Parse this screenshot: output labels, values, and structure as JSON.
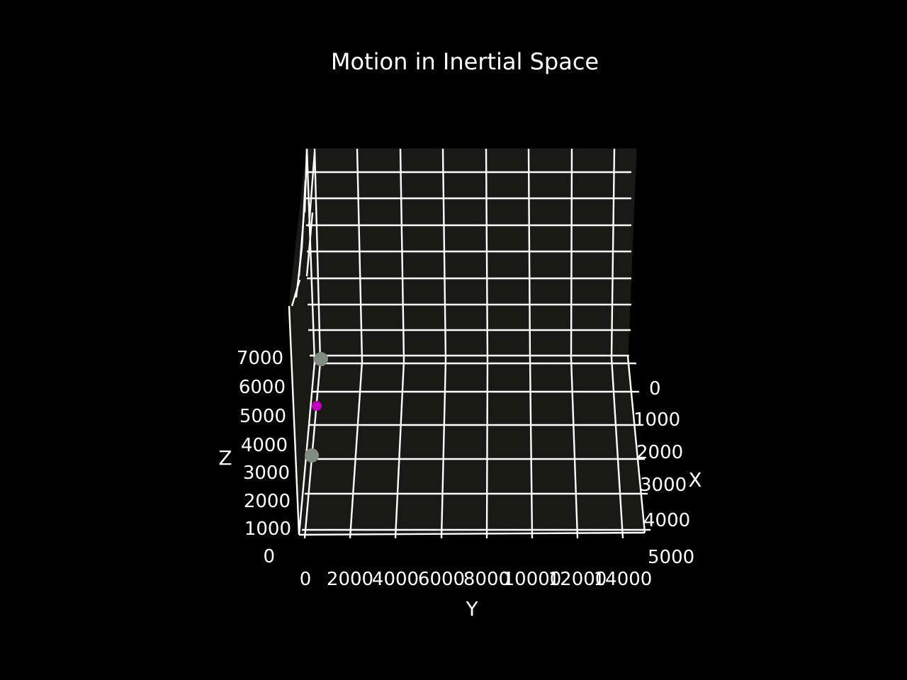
{
  "chart_data": {
    "type": "scatter",
    "projection": "3d",
    "title": "Motion in Inertial Space",
    "background": "#000000",
    "pane_color": "#1a1a14",
    "grid": true,
    "x_axis": {
      "label": "X",
      "ticks": [
        "0",
        "1000",
        "2000",
        "3000",
        "4000",
        "5000"
      ]
    },
    "y_axis": {
      "label": "Y",
      "ticks": [
        "0",
        "2000",
        "4000",
        "6000",
        "8000",
        "10000",
        "12000",
        "14000"
      ]
    },
    "z_axis": {
      "label": "Z",
      "ticks": [
        "0",
        "1000",
        "2000",
        "3000",
        "4000",
        "5000",
        "6000",
        "7000"
      ]
    },
    "points": [
      {
        "color": "#7f8c7f",
        "size": "large"
      },
      {
        "color": "#7f8c7f",
        "size": "large"
      },
      {
        "color": "#bf00bf",
        "size": "small"
      }
    ]
  }
}
